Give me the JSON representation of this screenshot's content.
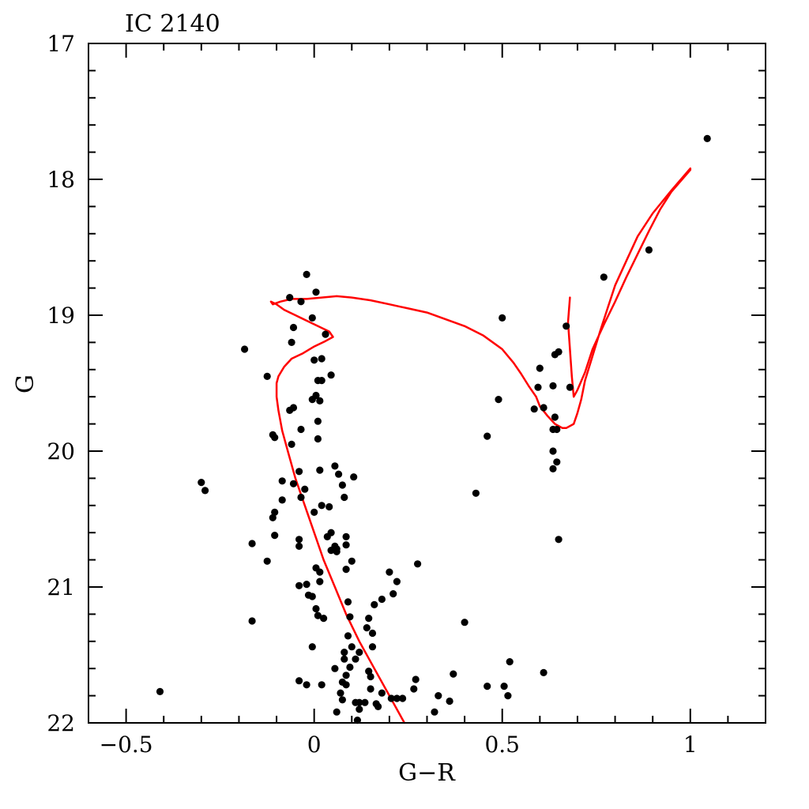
{
  "chart_data": {
    "type": "scatter",
    "title": "IC 2140",
    "xlabel": "G−R",
    "ylabel": "G",
    "xlim": [
      -0.6,
      1.2
    ],
    "ylim": [
      22,
      17
    ],
    "y_inverted": true,
    "grid": false,
    "x_ticks": [
      {
        "value": -0.5,
        "label": "−0.5"
      },
      {
        "value": 0,
        "label": "0"
      },
      {
        "value": 0.5,
        "label": "0.5"
      },
      {
        "value": 1,
        "label": "1"
      }
    ],
    "y_ticks": [
      {
        "value": 17,
        "label": "17"
      },
      {
        "value": 18,
        "label": "18"
      },
      {
        "value": 19,
        "label": "19"
      },
      {
        "value": 20,
        "label": "20"
      },
      {
        "value": 21,
        "label": "21"
      },
      {
        "value": 22,
        "label": "22"
      }
    ],
    "points_color": "#000000",
    "isochrone_color": "#ff0000",
    "series": [
      {
        "kind": "points",
        "x": [
          1.045,
          0.89,
          0.77,
          -0.02,
          0.005,
          -0.065,
          -0.035,
          0.5,
          -0.005,
          0.67,
          -0.055,
          0.03,
          -0.06,
          -0.185,
          0.65,
          0.64,
          0.0,
          0.02,
          0.045,
          0.6,
          -0.125,
          0.01,
          0.02,
          0.635,
          0.68,
          0.595,
          0.005,
          -0.005,
          0.49,
          0.015,
          0.61,
          -0.055,
          0.585,
          -0.065,
          0.64,
          0.01,
          -0.035,
          0.635,
          0.645,
          -0.11,
          0.46,
          -0.105,
          0.01,
          -0.06,
          0.635,
          0.055,
          0.645,
          0.635,
          0.065,
          0.015,
          -0.04,
          0.105,
          -0.085,
          -0.055,
          -0.3,
          0.075,
          -0.29,
          -0.025,
          0.43,
          -0.035,
          0.08,
          -0.085,
          0.02,
          0.04,
          0.0,
          -0.105,
          -0.11,
          0.045,
          -0.105,
          0.085,
          0.035,
          0.65,
          -0.04,
          -0.165,
          0.055,
          0.06,
          0.06,
          0.085,
          -0.04,
          0.045,
          -0.125,
          0.1,
          0.275,
          0.005,
          0.015,
          0.085,
          -0.04,
          0.2,
          0.22,
          -0.02,
          0.015,
          0.21,
          -0.015,
          -0.005,
          0.18,
          0.09,
          0.16,
          0.005,
          0.01,
          0.025,
          0.095,
          0.145,
          0.14,
          0.4,
          -0.165,
          0.155,
          0.09,
          0.155,
          0.1,
          -0.005,
          0.08,
          0.08,
          0.11,
          0.12,
          0.52,
          0.095,
          0.055,
          0.145,
          0.085,
          0.37,
          0.15,
          0.61,
          -0.04,
          0.075,
          0.27,
          0.085,
          -0.02,
          0.02,
          0.46,
          0.265,
          0.505,
          0.15,
          -0.41,
          0.07,
          0.18,
          0.515,
          0.33,
          0.22,
          0.205,
          0.235,
          0.36,
          0.075,
          0.12,
          0.135,
          0.11,
          0.17,
          0.165,
          0.12,
          0.32,
          0.06,
          0.115
        ],
        "y": [
          17.7,
          18.52,
          18.72,
          18.7,
          18.83,
          18.87,
          18.9,
          19.02,
          19.02,
          19.08,
          19.09,
          19.14,
          19.2,
          19.25,
          19.27,
          19.29,
          19.33,
          19.32,
          19.44,
          19.39,
          19.45,
          19.48,
          19.48,
          19.52,
          19.53,
          19.53,
          19.59,
          19.62,
          19.62,
          19.63,
          19.68,
          19.68,
          19.69,
          19.7,
          19.75,
          19.78,
          19.84,
          19.84,
          19.84,
          19.88,
          19.89,
          19.9,
          19.91,
          19.95,
          20.0,
          20.11,
          20.08,
          20.13,
          20.17,
          20.14,
          20.15,
          20.19,
          20.22,
          20.24,
          20.23,
          20.25,
          20.29,
          20.28,
          20.31,
          20.34,
          20.34,
          20.36,
          20.4,
          20.41,
          20.45,
          20.45,
          20.49,
          20.6,
          20.62,
          20.63,
          20.63,
          20.65,
          20.65,
          20.68,
          20.7,
          20.72,
          20.74,
          20.69,
          20.7,
          20.73,
          20.81,
          20.81,
          20.83,
          20.86,
          20.89,
          20.87,
          20.99,
          20.89,
          20.96,
          20.98,
          20.96,
          21.05,
          21.06,
          21.07,
          21.09,
          21.11,
          21.13,
          21.16,
          21.21,
          21.23,
          21.22,
          21.23,
          21.3,
          21.26,
          21.25,
          21.34,
          21.36,
          21.44,
          21.44,
          21.44,
          21.48,
          21.53,
          21.53,
          21.48,
          21.55,
          21.59,
          21.6,
          21.62,
          21.65,
          21.64,
          21.66,
          21.63,
          21.69,
          21.7,
          21.68,
          21.72,
          21.72,
          21.72,
          21.73,
          21.75,
          21.73,
          21.75,
          21.77,
          21.78,
          21.78,
          21.8,
          21.8,
          21.82,
          21.82,
          21.82,
          21.84,
          21.83,
          21.85,
          21.85,
          21.85,
          21.88,
          21.86,
          21.9,
          21.92,
          21.92,
          21.98
        ]
      },
      {
        "kind": "line",
        "x": [
          0.24,
          0.2,
          0.16,
          0.12,
          0.085,
          0.055,
          0.025,
          0.0,
          -0.025,
          -0.05,
          -0.07,
          -0.085,
          -0.095,
          -0.1,
          -0.1,
          -0.095,
          -0.08,
          -0.06,
          -0.03,
          0.0,
          0.03,
          0.05,
          0.04,
          0.01,
          -0.02,
          -0.05,
          -0.08,
          -0.1,
          -0.115,
          -0.11,
          -0.09,
          -0.06,
          -0.02,
          0.02,
          0.06,
          0.1,
          0.15,
          0.2,
          0.25,
          0.3,
          0.35,
          0.4,
          0.45,
          0.5,
          0.53,
          0.55,
          0.57,
          0.59,
          0.6,
          0.62,
          0.64,
          0.66,
          0.67,
          0.69,
          0.7,
          0.71,
          0.72,
          0.74,
          0.76,
          0.78,
          0.8,
          0.83,
          0.86,
          0.9,
          0.95,
          1.0,
          1.0,
          0.95,
          0.92,
          0.89,
          0.86,
          0.83,
          0.8,
          0.77,
          0.74,
          0.72,
          0.7,
          0.69,
          0.685,
          0.68,
          0.675,
          0.68
        ],
        "y": [
          22.0,
          21.8,
          21.6,
          21.4,
          21.2,
          21.0,
          20.8,
          20.6,
          20.4,
          20.2,
          20.0,
          19.85,
          19.7,
          19.6,
          19.5,
          19.45,
          19.38,
          19.32,
          19.28,
          19.23,
          19.19,
          19.16,
          19.12,
          19.08,
          19.04,
          19.0,
          18.96,
          18.92,
          18.9,
          18.92,
          18.9,
          18.88,
          18.88,
          18.87,
          18.86,
          18.87,
          18.89,
          18.92,
          18.95,
          18.98,
          19.03,
          19.08,
          19.15,
          19.25,
          19.35,
          19.43,
          19.52,
          19.6,
          19.67,
          19.74,
          19.8,
          19.83,
          19.83,
          19.8,
          19.72,
          19.62,
          19.48,
          19.3,
          19.12,
          18.95,
          18.78,
          18.6,
          18.42,
          18.25,
          18.08,
          17.92,
          17.93,
          18.09,
          18.22,
          18.38,
          18.55,
          18.72,
          18.9,
          19.07,
          19.25,
          19.42,
          19.55,
          19.6,
          19.45,
          19.25,
          19.05,
          18.87
        ]
      }
    ]
  }
}
